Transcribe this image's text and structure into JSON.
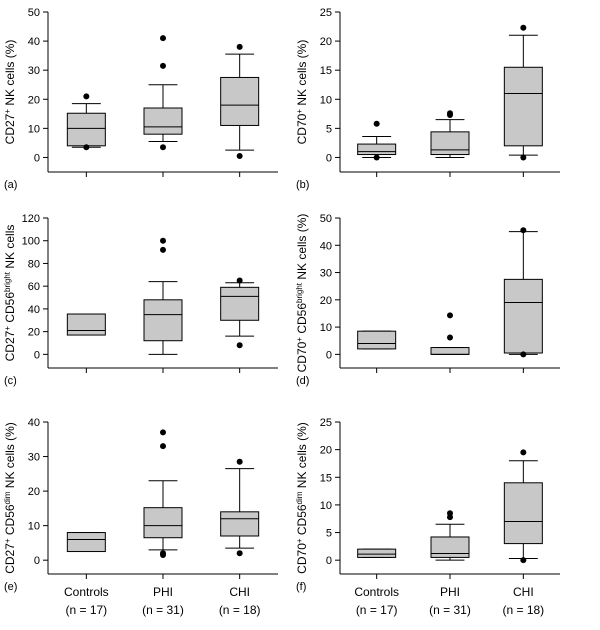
{
  "figure": {
    "group_labels": [
      "Controls",
      "PHI",
      "CHI"
    ],
    "group_counts": [
      "(n = 17)",
      "(n = 31)",
      "(n = 18)"
    ],
    "colors": {
      "box_fill": "#c8c8c8",
      "line": "#000000",
      "outlier": "#000000"
    }
  },
  "chart_data": [
    {
      "type": "box",
      "panel": "(a)",
      "ylabel": {
        "main": "CD27",
        "sup": "+",
        "rest": " NK cells (%)"
      },
      "ylim": [
        -5,
        50
      ],
      "yticks": [
        0,
        10,
        20,
        30,
        40,
        50
      ],
      "categories": [
        "Controls",
        "PHI",
        "CHI"
      ],
      "boxes": [
        {
          "whisker_low": 3.5,
          "q1": 4,
          "median": 10,
          "q3": 15.2,
          "whisker_high": 18.5,
          "outliers": [
            3.5,
            21
          ]
        },
        {
          "whisker_low": 5.5,
          "q1": 8,
          "median": 10.5,
          "q3": 17,
          "whisker_high": 25,
          "outliers": [
            3.5,
            31.5,
            41
          ]
        },
        {
          "whisker_low": 2.5,
          "q1": 11,
          "median": 18,
          "q3": 27.5,
          "whisker_high": 35.5,
          "outliers": [
            0.5,
            38
          ]
        }
      ]
    },
    {
      "type": "box",
      "panel": "(b)",
      "ylabel": {
        "main": "CD70",
        "sup": "+",
        "rest": " NK cells (%)"
      },
      "ylim": [
        -2.5,
        25
      ],
      "yticks": [
        0,
        5,
        10,
        15,
        20,
        25
      ],
      "categories": [
        "Controls",
        "PHI",
        "CHI"
      ],
      "boxes": [
        {
          "whisker_low": 0,
          "q1": 0.5,
          "median": 1,
          "q3": 2.3,
          "whisker_high": 3.6,
          "outliers": [
            5.8,
            0
          ]
        },
        {
          "whisker_low": 0,
          "q1": 0.5,
          "median": 1.3,
          "q3": 4.4,
          "whisker_high": 6.5,
          "outliers": [
            7.3,
            7.6
          ]
        },
        {
          "whisker_low": 0.4,
          "q1": 2,
          "median": 11,
          "q3": 15.5,
          "whisker_high": 21,
          "outliers": [
            0,
            22.3
          ]
        }
      ]
    },
    {
      "type": "box",
      "panel": "(c)",
      "ylabel": {
        "main": "CD27",
        "sup": "+",
        "rest": " CD56",
        "sup2": "bright",
        "rest2": " NK cells"
      },
      "ylim": [
        -12,
        120
      ],
      "yticks": [
        0,
        20,
        40,
        60,
        80,
        100,
        120
      ],
      "categories": [
        "Controls",
        "PHI",
        "CHI"
      ],
      "boxes": [
        {
          "whisker_low": 17,
          "q1": 17,
          "median": 21,
          "q3": 35.5,
          "whisker_high": 35.5,
          "outliers": []
        },
        {
          "whisker_low": 0,
          "q1": 12,
          "median": 35,
          "q3": 48,
          "whisker_high": 64,
          "outliers": [
            92,
            100
          ]
        },
        {
          "whisker_low": 16,
          "q1": 30,
          "median": 51,
          "q3": 59,
          "whisker_high": 63,
          "outliers": [
            8,
            65
          ]
        }
      ]
    },
    {
      "type": "box",
      "panel": "(d)",
      "ylabel": {
        "main": "CD70",
        "sup": "+",
        "rest": " CD56",
        "sup2": "bright",
        "rest2": " NK cells (%)"
      },
      "ylim": [
        -5,
        50
      ],
      "yticks": [
        0,
        10,
        20,
        30,
        40,
        50
      ],
      "categories": [
        "Controls",
        "PHI",
        "CHI"
      ],
      "boxes": [
        {
          "whisker_low": 2,
          "q1": 2,
          "median": 4,
          "q3": 8.5,
          "whisker_high": 8.5,
          "outliers": []
        },
        {
          "whisker_low": 0,
          "q1": 0,
          "median": 0,
          "q3": 2.5,
          "whisker_high": 2.5,
          "outliers": [
            6.2,
            14.3
          ]
        },
        {
          "whisker_low": 0,
          "q1": 0.5,
          "median": 19,
          "q3": 27.5,
          "whisker_high": 45,
          "outliers": [
            0,
            45.5
          ]
        }
      ]
    },
    {
      "type": "box",
      "panel": "(e)",
      "ylabel": {
        "main": "CD27",
        "sup": "+",
        "rest": " CD56",
        "sup2": "dim",
        "rest2": " NK cells (%)"
      },
      "ylim": [
        -4,
        40
      ],
      "yticks": [
        0,
        10,
        20,
        30,
        40
      ],
      "categories": [
        "Controls",
        "PHI",
        "CHI"
      ],
      "boxes": [
        {
          "whisker_low": 2.5,
          "q1": 2.5,
          "median": 6,
          "q3": 8,
          "whisker_high": 8,
          "outliers": []
        },
        {
          "whisker_low": 3,
          "q1": 6.5,
          "median": 10,
          "q3": 15.2,
          "whisker_high": 23,
          "outliers": [
            1.5,
            2,
            33,
            37
          ]
        },
        {
          "whisker_low": 3.5,
          "q1": 7,
          "median": 12,
          "q3": 14,
          "whisker_high": 26.5,
          "outliers": [
            2,
            28.5
          ]
        }
      ]
    },
    {
      "type": "box",
      "panel": "(f)",
      "ylabel": {
        "main": "CD70",
        "sup": "+",
        "rest": " CD56",
        "sup2": "dim",
        "rest2": " NK cells (%)"
      },
      "ylim": [
        -2.5,
        25
      ],
      "yticks": [
        0,
        5,
        10,
        15,
        20,
        25
      ],
      "categories": [
        "Controls",
        "PHI",
        "CHI"
      ],
      "boxes": [
        {
          "whisker_low": 0.5,
          "q1": 0.5,
          "median": 1.1,
          "q3": 2,
          "whisker_high": 2,
          "outliers": []
        },
        {
          "whisker_low": 0,
          "q1": 0.5,
          "median": 1.2,
          "q3": 4.2,
          "whisker_high": 6.5,
          "outliers": [
            7.8,
            8.5
          ]
        },
        {
          "whisker_low": 0.3,
          "q1": 3,
          "median": 7,
          "q3": 14,
          "whisker_high": 18,
          "outliers": [
            0,
            19.5
          ]
        }
      ]
    }
  ]
}
